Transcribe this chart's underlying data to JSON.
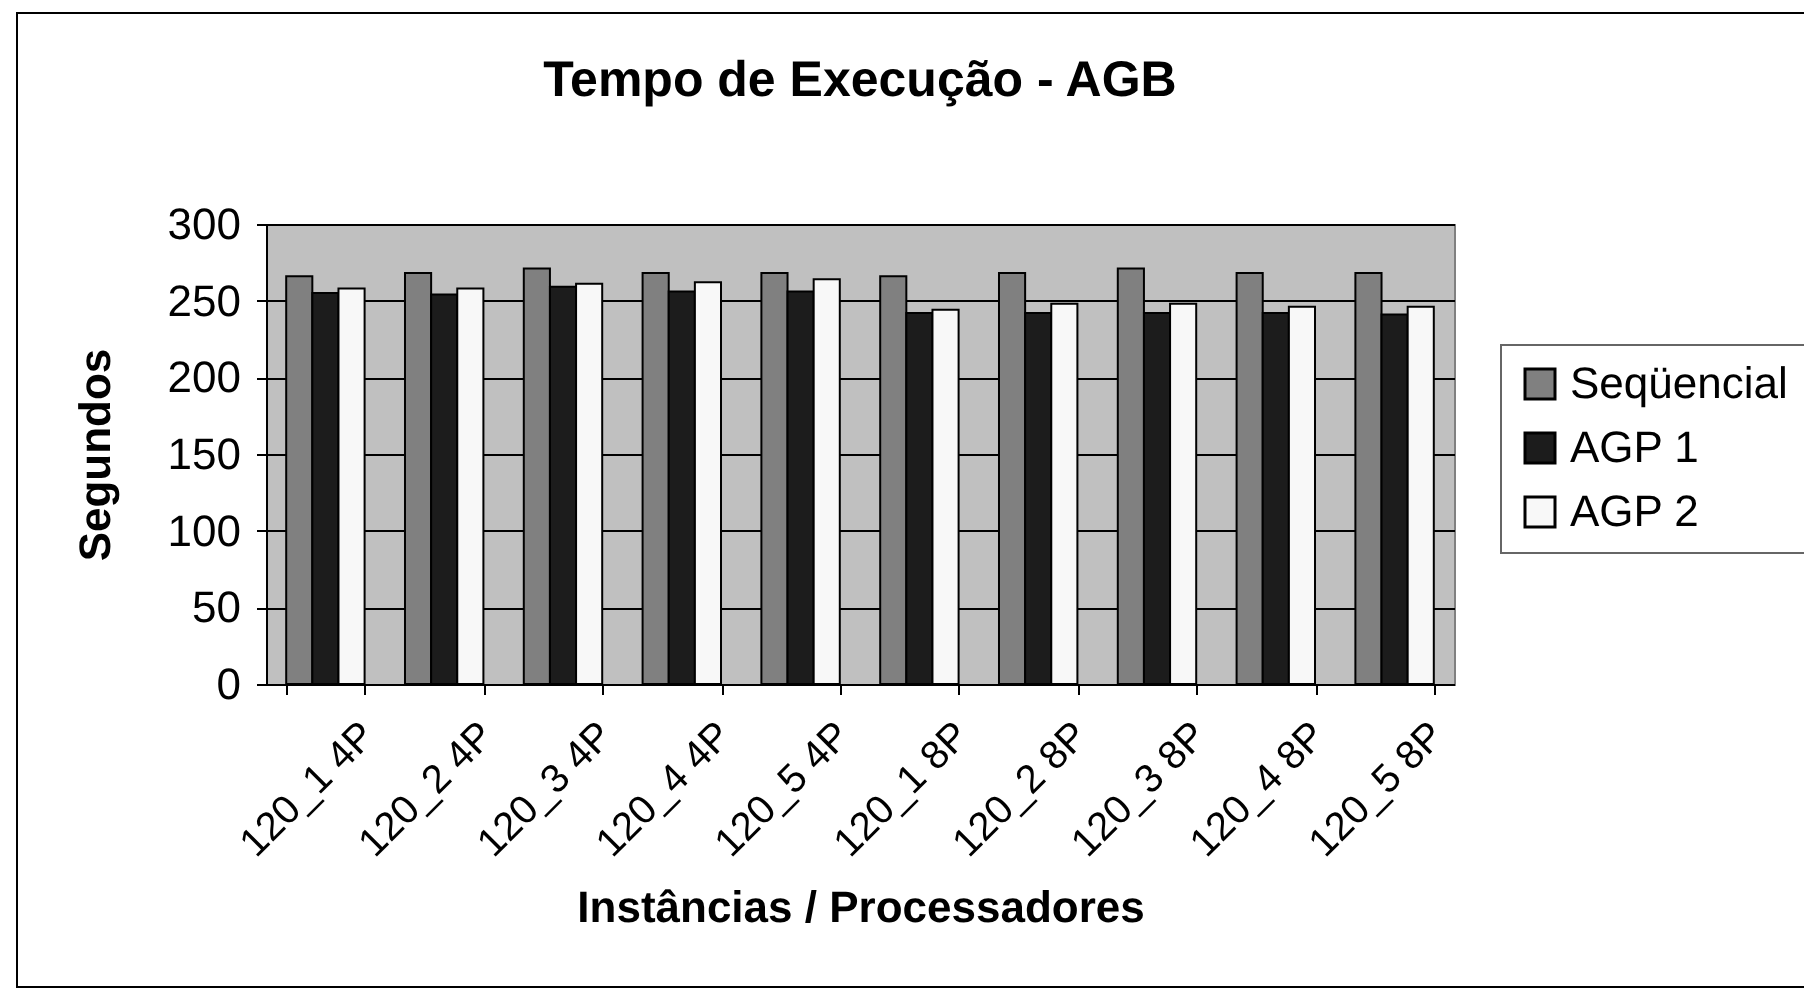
{
  "chart_data": {
    "type": "bar",
    "title": "Tempo de Execução - AGB",
    "xlabel": "Instâncias / Processadores",
    "ylabel": "Segundos",
    "categories": [
      "120_1 4P",
      "120_2 4P",
      "120_3 4P",
      "120_4 4P",
      "120_5 4P",
      "120_1 8P",
      "120_2 8P",
      "120_3 8P",
      "120_4 8P",
      "120_5 8P"
    ],
    "series": [
      {
        "name": "Seqüencial",
        "color": "#808080",
        "values": [
          266,
          268,
          271,
          268,
          268,
          266,
          268,
          271,
          268,
          268
        ]
      },
      {
        "name": "AGP 1",
        "color": "#1c1c1c",
        "values": [
          255,
          254,
          259,
          256,
          256,
          242,
          242,
          242,
          242,
          241
        ]
      },
      {
        "name": "AGP 2",
        "color": "#f8f8f8",
        "values": [
          258,
          258,
          261,
          262,
          264,
          244,
          248,
          248,
          246,
          246
        ]
      }
    ],
    "ylim": [
      0,
      300
    ],
    "yticks": [
      0,
      50,
      100,
      150,
      200,
      250,
      300
    ],
    "grid": "y",
    "legend": "right"
  }
}
